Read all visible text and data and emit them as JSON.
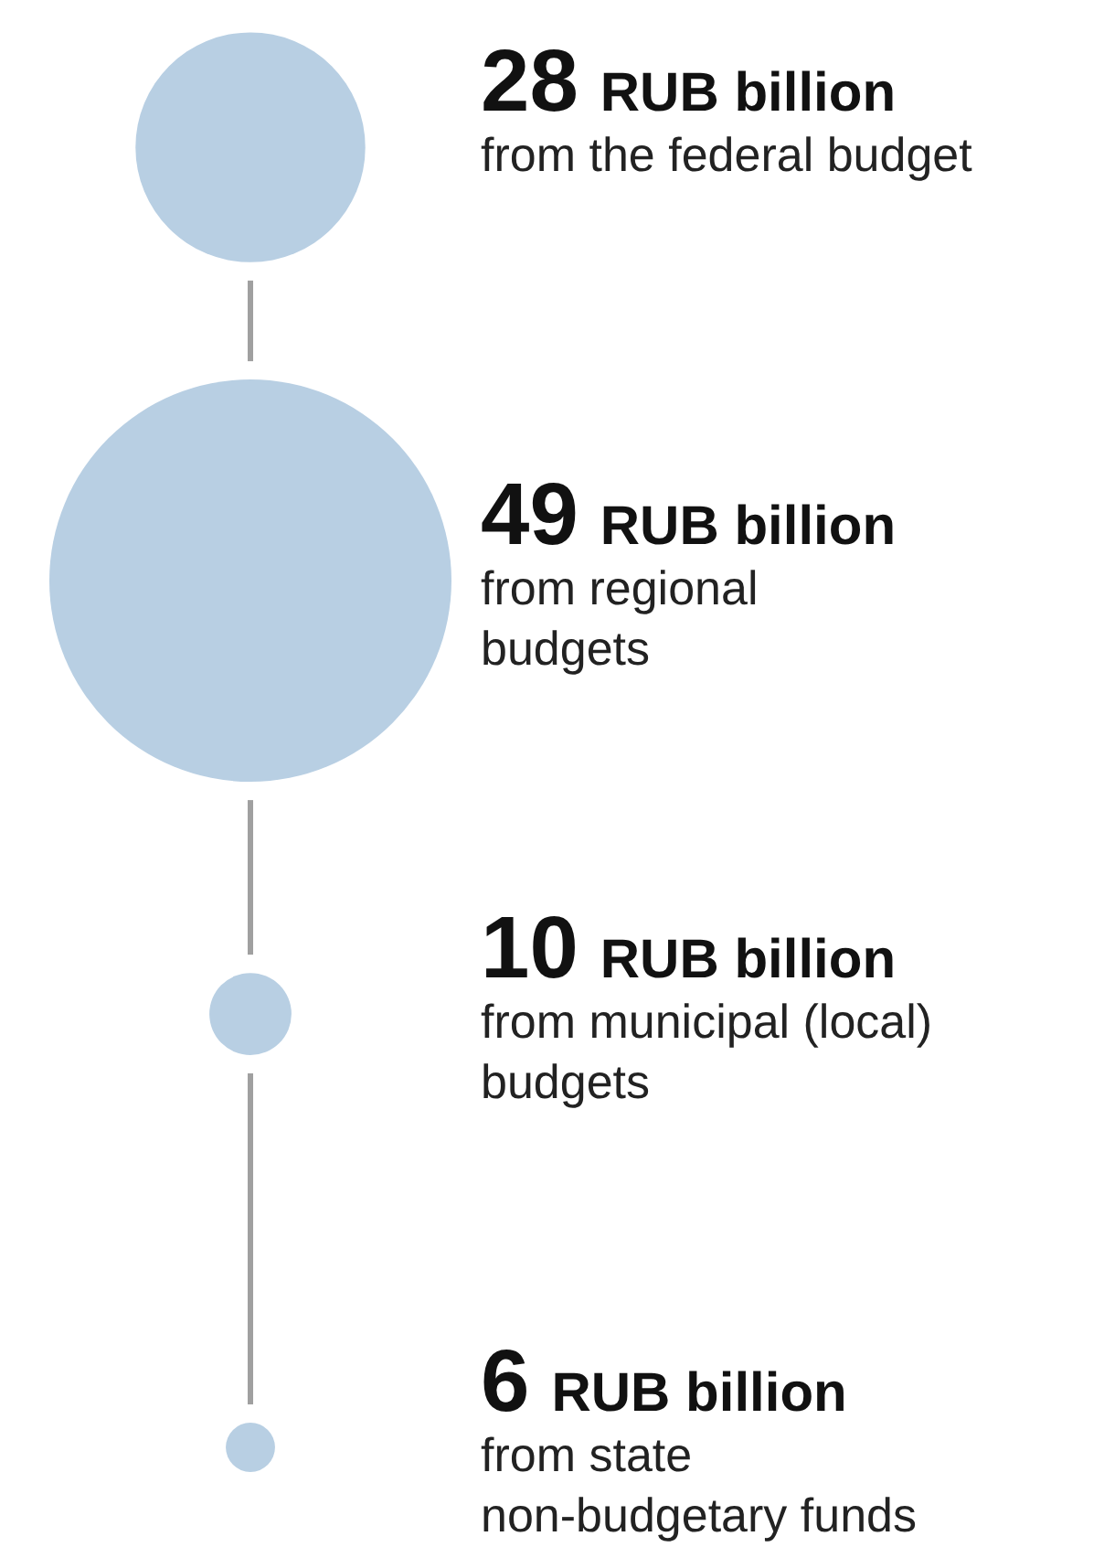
{
  "chart_data": {
    "type": "other",
    "categories": [
      "from the federal budget",
      "from regional\nbudgets",
      "from municipal (local)\nbudgets",
      "from state\nnon-budgetary funds"
    ],
    "values": [
      28,
      49,
      10,
      6
    ],
    "value_labels": [
      "28 RUB billion",
      "49 RUB billion",
      "10 RUB billion",
      "6 RUB billion"
    ],
    "color": "#b8cfe3"
  }
}
